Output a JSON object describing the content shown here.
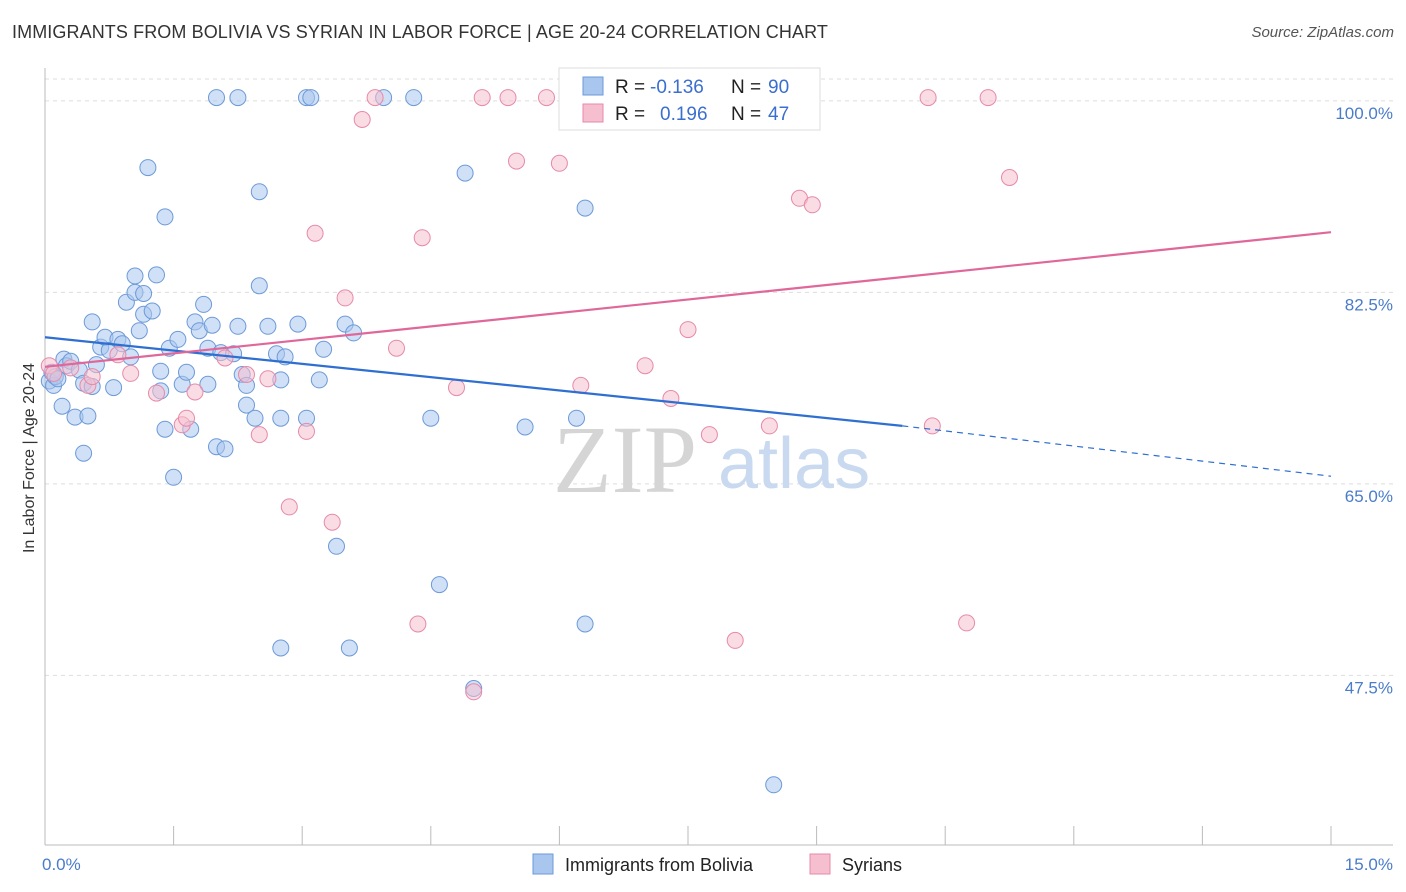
{
  "header": {
    "title": "IMMIGRANTS FROM BOLIVIA VS SYRIAN IN LABOR FORCE | AGE 20-24 CORRELATION CHART",
    "source": "Source: ZipAtlas.com"
  },
  "watermark": {
    "zip": "ZIP",
    "atlas": "atlas"
  },
  "colors": {
    "blue_fill": "#a9c6ee",
    "blue_stroke": "#6c9ad8",
    "blue_line": "#2f6fd1",
    "pink_fill": "#f6bfd0",
    "pink_stroke": "#e68aa8",
    "pink_line": "#e0679a",
    "grid": "#dddddd",
    "axis_label": "#4a7cc9"
  },
  "legend": {
    "rows": [
      {
        "r_label": "R =",
        "r_value": "-0.136",
        "n_label": "N =",
        "n_value": "90"
      },
      {
        "r_label": "R =",
        "r_value": "0.196",
        "n_label": "N =",
        "n_value": "47"
      }
    ]
  },
  "chart_data": {
    "type": "scatter",
    "title": "IMMIGRANTS FROM BOLIVIA VS SYRIAN IN LABOR FORCE | AGE 20-24 CORRELATION CHART",
    "xlabel": "",
    "ylabel": "In Labor Force | Age 20-24",
    "xlim": [
      0,
      15
    ],
    "ylim": [
      32,
      102
    ],
    "x_tick_labels": [
      "0.0%",
      "15.0%"
    ],
    "y_ticks": [
      47.5,
      65.0,
      82.5,
      100.0
    ],
    "y_tick_labels": [
      "47.5%",
      "65.0%",
      "82.5%",
      "100.0%"
    ],
    "grid": true,
    "legend_position": "bottom",
    "series": [
      {
        "name": "Immigrants from Bolivia",
        "color": "#a9c6ee",
        "trend": {
          "x": [
            0,
            10.0
          ],
          "y": [
            78.4,
            70.3
          ],
          "dashed_to": [
            15,
            65.7
          ]
        },
        "points": [
          [
            0.05,
            74.4
          ],
          [
            0.08,
            75.2
          ],
          [
            0.1,
            74.0
          ],
          [
            0.12,
            74.8
          ],
          [
            0.15,
            74.6
          ],
          [
            0.2,
            72.1
          ],
          [
            0.22,
            76.4
          ],
          [
            0.25,
            75.8
          ],
          [
            0.3,
            76.2
          ],
          [
            0.35,
            71.1
          ],
          [
            0.4,
            75.4
          ],
          [
            0.45,
            67.8
          ],
          [
            0.45,
            74.2
          ],
          [
            0.5,
            71.2
          ],
          [
            0.55,
            79.8
          ],
          [
            0.6,
            75.9
          ],
          [
            0.65,
            77.5
          ],
          [
            0.7,
            78.4
          ],
          [
            0.75,
            77.2
          ],
          [
            0.8,
            73.8
          ],
          [
            0.85,
            78.2
          ],
          [
            0.9,
            77.8
          ],
          [
            0.95,
            81.6
          ],
          [
            1.0,
            76.6
          ],
          [
            1.05,
            84.0
          ],
          [
            1.05,
            82.5
          ],
          [
            1.1,
            79.0
          ],
          [
            1.15,
            82.4
          ],
          [
            1.15,
            80.5
          ],
          [
            1.2,
            93.9
          ],
          [
            1.25,
            80.8
          ],
          [
            1.3,
            84.1
          ],
          [
            1.35,
            75.3
          ],
          [
            1.35,
            73.5
          ],
          [
            1.4,
            89.4
          ],
          [
            1.4,
            70.0
          ],
          [
            1.45,
            77.4
          ],
          [
            1.5,
            65.6
          ],
          [
            1.55,
            78.2
          ],
          [
            1.6,
            74.1
          ],
          [
            1.65,
            75.2
          ],
          [
            1.7,
            70.0
          ],
          [
            1.75,
            79.8
          ],
          [
            1.8,
            79.0
          ],
          [
            1.85,
            81.4
          ],
          [
            1.9,
            74.1
          ],
          [
            1.9,
            77.4
          ],
          [
            1.95,
            79.5
          ],
          [
            2.0,
            68.4
          ],
          [
            2.0,
            100.3
          ],
          [
            2.05,
            77.0
          ],
          [
            2.1,
            68.2
          ],
          [
            2.2,
            76.9
          ],
          [
            2.25,
            100.3
          ],
          [
            2.25,
            79.4
          ],
          [
            2.3,
            75.0
          ],
          [
            2.35,
            74.0
          ],
          [
            2.35,
            72.2
          ],
          [
            2.45,
            71.0
          ],
          [
            2.5,
            83.1
          ],
          [
            2.5,
            91.7
          ],
          [
            2.6,
            79.4
          ],
          [
            2.7,
            76.9
          ],
          [
            2.75,
            74.5
          ],
          [
            2.75,
            71.0
          ],
          [
            2.8,
            76.6
          ],
          [
            2.95,
            79.6
          ],
          [
            3.05,
            71.0
          ],
          [
            3.05,
            100.3
          ],
          [
            3.1,
            100.3
          ],
          [
            3.2,
            74.5
          ],
          [
            3.25,
            77.3
          ],
          [
            3.4,
            59.3
          ],
          [
            3.5,
            79.6
          ],
          [
            3.6,
            78.8
          ],
          [
            3.95,
            100.3
          ],
          [
            4.3,
            100.3
          ],
          [
            4.5,
            71.0
          ],
          [
            4.6,
            55.8
          ],
          [
            4.9,
            93.4
          ],
          [
            5.0,
            46.3
          ],
          [
            5.6,
            70.2
          ],
          [
            6.2,
            71.0
          ],
          [
            6.3,
            90.2
          ],
          [
            6.3,
            52.2
          ],
          [
            7.1,
            100.3
          ],
          [
            8.5,
            37.5
          ],
          [
            3.55,
            50.0
          ],
          [
            2.75,
            50.0
          ],
          [
            0.55,
            73.9
          ]
        ]
      },
      {
        "name": "Syrians",
        "color": "#f6bfd0",
        "trend": {
          "x": [
            0,
            15
          ],
          "y": [
            75.7,
            88.0
          ]
        },
        "points": [
          [
            0.05,
            75.8
          ],
          [
            0.1,
            75.1
          ],
          [
            0.3,
            75.6
          ],
          [
            0.5,
            74.0
          ],
          [
            0.55,
            74.8
          ],
          [
            0.85,
            76.8
          ],
          [
            1.0,
            75.1
          ],
          [
            1.3,
            73.3
          ],
          [
            1.6,
            70.4
          ],
          [
            1.65,
            71.0
          ],
          [
            1.75,
            73.4
          ],
          [
            2.1,
            76.5
          ],
          [
            2.35,
            75.0
          ],
          [
            2.5,
            69.5
          ],
          [
            2.6,
            74.6
          ],
          [
            2.85,
            62.9
          ],
          [
            3.05,
            69.8
          ],
          [
            3.15,
            87.9
          ],
          [
            3.35,
            61.5
          ],
          [
            3.5,
            82.0
          ],
          [
            3.7,
            98.3
          ],
          [
            3.85,
            100.3
          ],
          [
            4.1,
            77.4
          ],
          [
            4.35,
            52.2
          ],
          [
            4.4,
            87.5
          ],
          [
            4.8,
            73.8
          ],
          [
            5.0,
            46.0
          ],
          [
            5.1,
            100.3
          ],
          [
            5.4,
            100.3
          ],
          [
            5.5,
            94.5
          ],
          [
            5.85,
            100.3
          ],
          [
            6.0,
            94.3
          ],
          [
            6.25,
            74.0
          ],
          [
            6.7,
            100.3
          ],
          [
            7.0,
            75.8
          ],
          [
            7.3,
            72.8
          ],
          [
            7.5,
            79.1
          ],
          [
            7.75,
            69.5
          ],
          [
            8.05,
            50.7
          ],
          [
            8.45,
            70.3
          ],
          [
            8.8,
            91.1
          ],
          [
            8.95,
            90.5
          ],
          [
            10.3,
            100.3
          ],
          [
            10.35,
            70.3
          ],
          [
            10.75,
            52.3
          ],
          [
            11.0,
            100.3
          ],
          [
            11.25,
            93.0
          ]
        ]
      }
    ]
  }
}
